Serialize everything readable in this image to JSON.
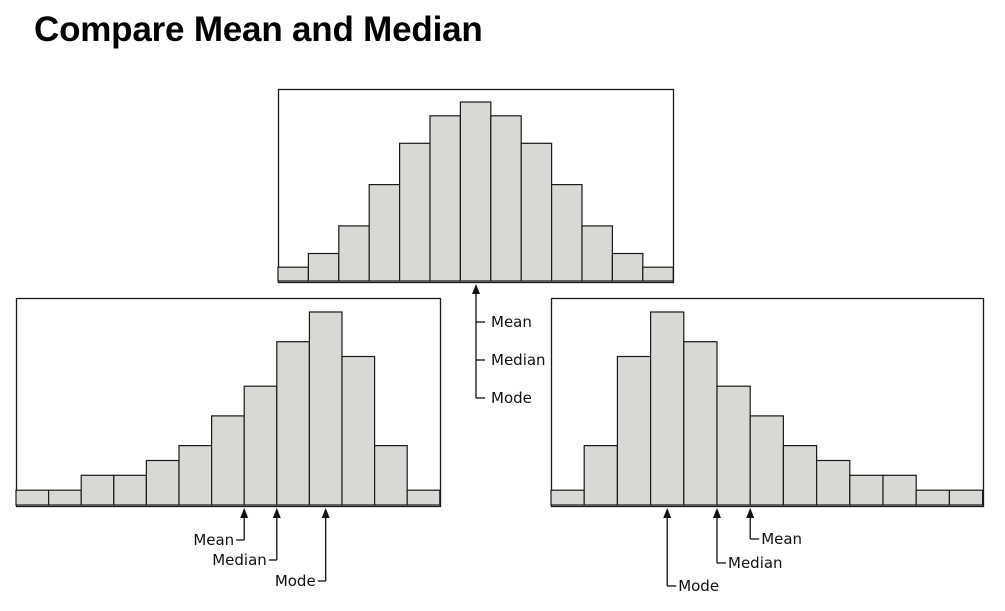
{
  "title": "Compare Mean and Median",
  "colors": {
    "bar_fill": "#d8d8d4",
    "bar_stroke": "#1a1a1a",
    "frame": "#1a1a1a",
    "background": "#ffffff"
  },
  "chart_data": [
    {
      "id": "symmetric",
      "type": "bar",
      "values": [
        1,
        2,
        4,
        7,
        10,
        12,
        13,
        12,
        10,
        7,
        4,
        2,
        1
      ],
      "ylim": [
        0,
        13
      ],
      "grid": false,
      "annotations": [
        {
          "text": "Mean",
          "bin_edge": 6.5
        },
        {
          "text": "Median",
          "bin_edge": 6.5
        },
        {
          "text": "Mode",
          "bin_edge": 6.5
        }
      ]
    },
    {
      "id": "left-skewed",
      "type": "bar",
      "values": [
        1,
        1,
        2,
        2,
        3,
        4,
        6,
        8,
        11,
        13,
        10,
        4,
        1
      ],
      "ylim": [
        0,
        13
      ],
      "grid": false,
      "annotations": [
        {
          "text": "Mean",
          "bin_edge": 7
        },
        {
          "text": "Median",
          "bin_edge": 8
        },
        {
          "text": "Mode",
          "bin_edge": 9.5
        }
      ]
    },
    {
      "id": "right-skewed",
      "type": "bar",
      "values": [
        1,
        4,
        10,
        13,
        11,
        8,
        6,
        4,
        3,
        2,
        2,
        1,
        1
      ],
      "ylim": [
        0,
        13
      ],
      "grid": false,
      "annotations": [
        {
          "text": "Mean",
          "bin_edge": 6
        },
        {
          "text": "Median",
          "bin_edge": 5
        },
        {
          "text": "Mode",
          "bin_edge": 3.5
        }
      ]
    }
  ]
}
